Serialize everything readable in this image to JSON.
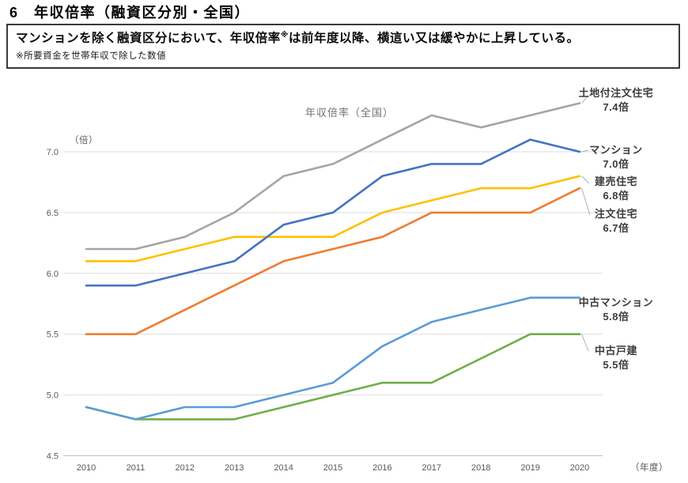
{
  "header": {
    "title": "6　年収倍率（融資区分別・全国）"
  },
  "summary": {
    "main_before_ref": "マンションを除く融資区分において、年収倍率",
    "ref_mark": "※",
    "main_after_ref": "は前年度以降、横這い又は緩やかに上昇している。",
    "note": "※所要資金を世帯年収で除した数値"
  },
  "chart_data": {
    "type": "line",
    "title": "年収倍率（全国）",
    "y_unit_label": "（倍）",
    "x_unit_label": "（年度）",
    "categories": [
      "2010",
      "2011",
      "2012",
      "2013",
      "2014",
      "2015",
      "2016",
      "2017",
      "2018",
      "2019",
      "2020"
    ],
    "ylim": [
      4.5,
      7.5
    ],
    "yticks": [
      4.5,
      5.0,
      5.5,
      6.0,
      6.5,
      7.0
    ],
    "grid": true,
    "legend_position": "right-annotations",
    "series": [
      {
        "key": "land-custom-home",
        "name": "土地付注文住宅",
        "annotation": "7.4倍",
        "color": "#A5A5A5",
        "values": [
          6.2,
          6.2,
          6.3,
          6.5,
          6.8,
          6.9,
          7.1,
          7.3,
          7.2,
          7.3,
          7.4
        ]
      },
      {
        "key": "condo",
        "name": "マンション",
        "annotation": "7.0倍",
        "color": "#4472C4",
        "values": [
          5.9,
          5.9,
          6.0,
          6.1,
          6.4,
          6.5,
          6.8,
          6.9,
          6.9,
          7.1,
          7.0
        ]
      },
      {
        "key": "spec-home",
        "name": "建売住宅",
        "annotation": "6.8倍",
        "color": "#FFC000",
        "values": [
          6.1,
          6.1,
          6.2,
          6.3,
          6.3,
          6.3,
          6.5,
          6.6,
          6.7,
          6.7,
          6.8
        ]
      },
      {
        "key": "custom-home",
        "name": "注文住宅",
        "annotation": "6.7倍",
        "color": "#ED7D31",
        "values": [
          5.5,
          5.5,
          5.7,
          5.9,
          6.1,
          6.2,
          6.3,
          6.5,
          6.5,
          6.5,
          6.7
        ]
      },
      {
        "key": "used-condo",
        "name": "中古マンション",
        "annotation": "5.8倍",
        "color": "#5B9BD5",
        "values": [
          4.9,
          4.8,
          4.9,
          4.9,
          5.0,
          5.1,
          5.4,
          5.6,
          5.7,
          5.8,
          5.8
        ]
      },
      {
        "key": "used-detached",
        "name": "中古戸建",
        "annotation": "5.5倍",
        "color": "#70AD47",
        "values": [
          4.9,
          4.8,
          4.8,
          4.8,
          4.9,
          5.0,
          5.1,
          5.1,
          5.3,
          5.5,
          5.5
        ]
      }
    ]
  }
}
